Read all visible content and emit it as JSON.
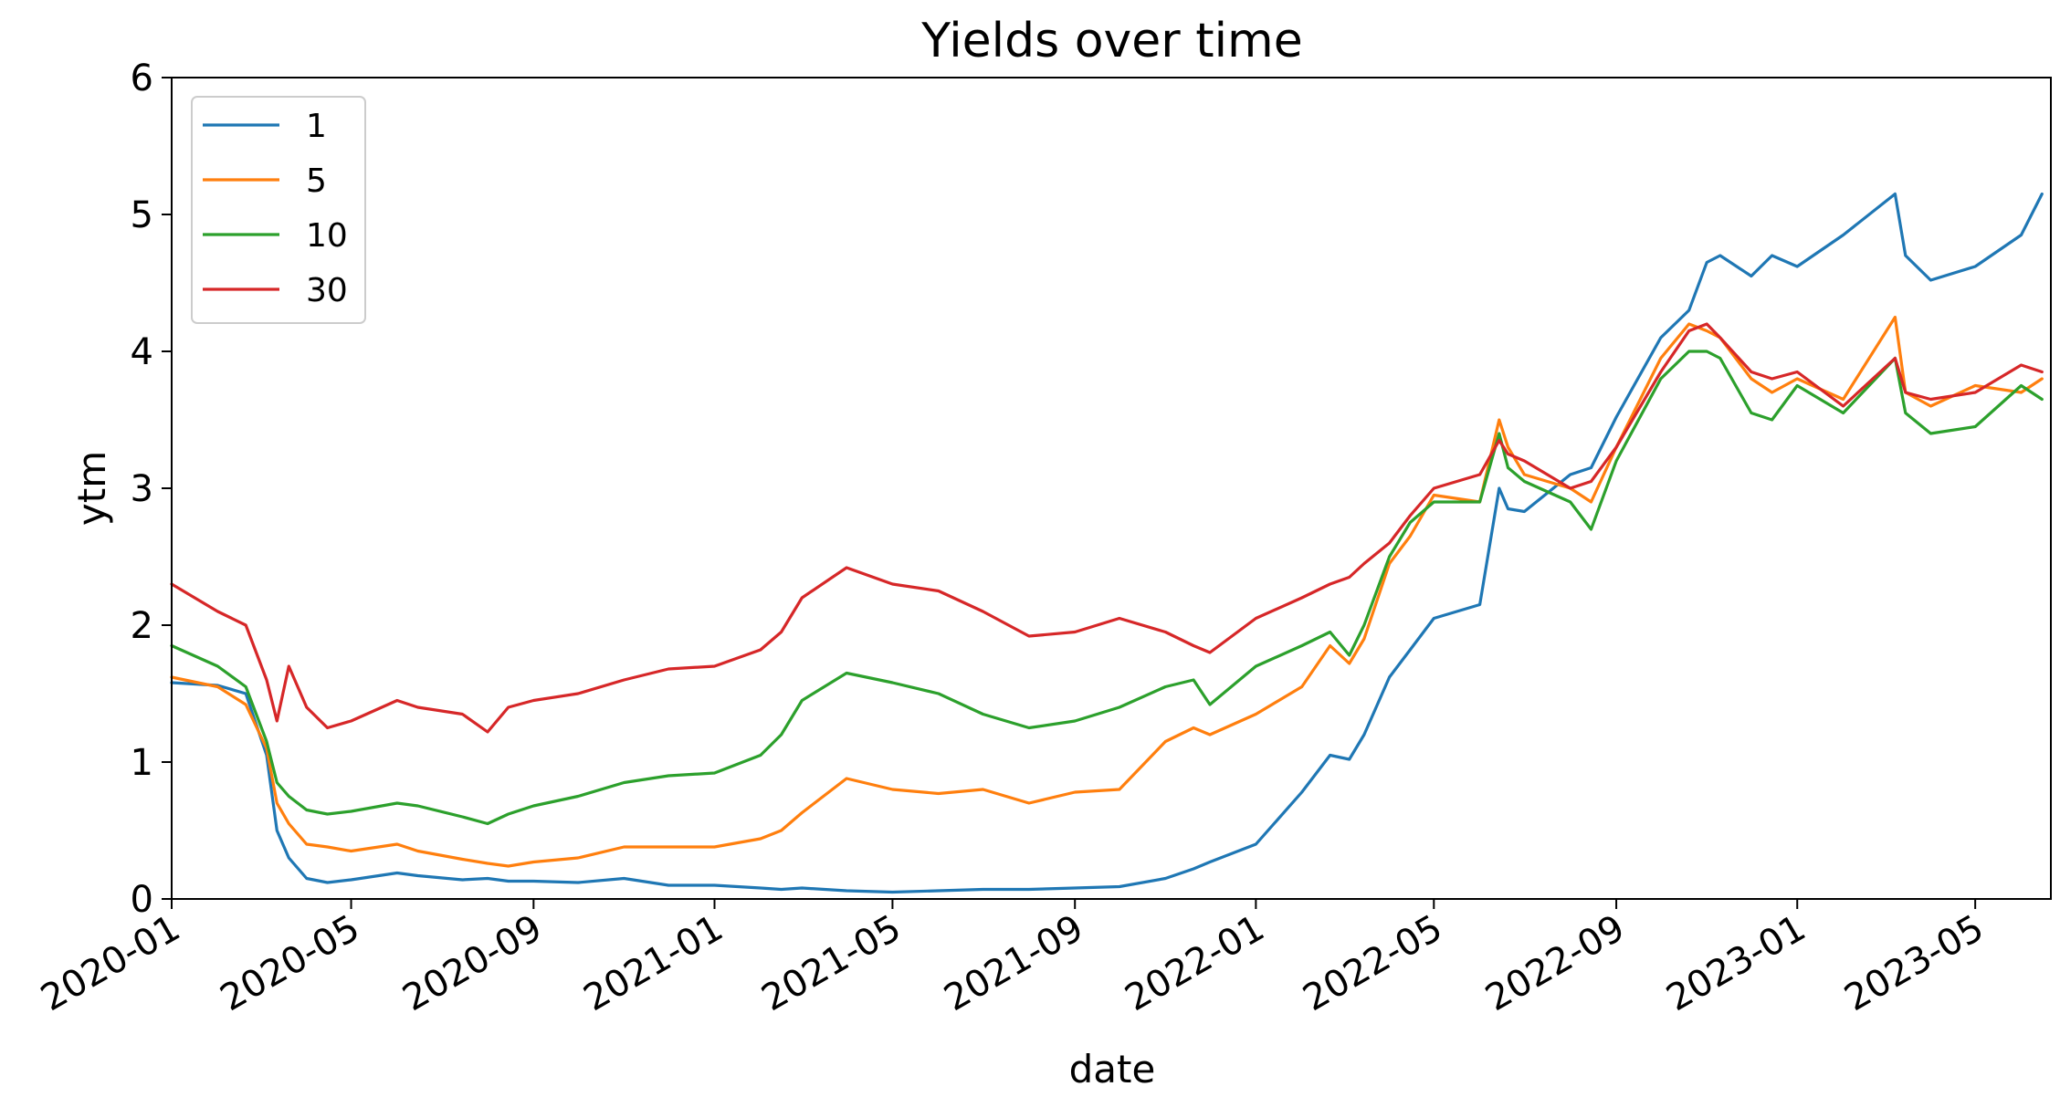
{
  "chart_data": {
    "type": "line",
    "title": "Yields over time",
    "xlabel": "date",
    "ylabel": "ytm",
    "xlim": [
      "2020-01-01",
      "2023-06-21"
    ],
    "ylim": [
      0,
      6
    ],
    "xticks": [
      "2020-01",
      "2020-05",
      "2020-09",
      "2021-01",
      "2021-05",
      "2021-09",
      "2022-01",
      "2022-05",
      "2022-09",
      "2023-01",
      "2023-05"
    ],
    "yticks": [
      "0",
      "1",
      "2",
      "3",
      "4",
      "5",
      "6"
    ],
    "grid": false,
    "legend": "upper-left",
    "x": [
      "2020-01-01",
      "2020-02-01",
      "2020-02-20",
      "2020-03-05",
      "2020-03-12",
      "2020-03-20",
      "2020-04-01",
      "2020-04-15",
      "2020-05-01",
      "2020-06-01",
      "2020-06-15",
      "2020-07-15",
      "2020-08-01",
      "2020-08-15",
      "2020-09-01",
      "2020-10-01",
      "2020-11-01",
      "2020-12-01",
      "2021-01-01",
      "2021-02-01",
      "2021-02-15",
      "2021-03-01",
      "2021-03-31",
      "2021-05-01",
      "2021-06-01",
      "2021-07-01",
      "2021-08-01",
      "2021-09-01",
      "2021-10-01",
      "2021-11-01",
      "2021-11-20",
      "2021-12-01",
      "2022-01-01",
      "2022-02-01",
      "2022-02-20",
      "2022-03-05",
      "2022-03-15",
      "2022-04-01",
      "2022-04-15",
      "2022-05-01",
      "2022-06-01",
      "2022-06-14",
      "2022-06-20",
      "2022-07-01",
      "2022-08-01",
      "2022-08-15",
      "2022-09-01",
      "2022-10-01",
      "2022-10-20",
      "2022-11-01",
      "2022-11-10",
      "2022-12-01",
      "2022-12-15",
      "2023-01-01",
      "2023-02-01",
      "2023-03-08",
      "2023-03-15",
      "2023-04-01",
      "2023-05-01",
      "2023-06-01",
      "2023-06-15"
    ],
    "series": [
      {
        "name": "1",
        "color": "#1f77b4",
        "values": [
          1.58,
          1.56,
          1.5,
          1.05,
          0.5,
          0.3,
          0.15,
          0.12,
          0.14,
          0.19,
          0.17,
          0.14,
          0.15,
          0.13,
          0.13,
          0.12,
          0.15,
          0.1,
          0.1,
          0.08,
          0.07,
          0.08,
          0.06,
          0.05,
          0.06,
          0.07,
          0.07,
          0.08,
          0.09,
          0.15,
          0.22,
          0.27,
          0.4,
          0.78,
          1.05,
          1.02,
          1.2,
          1.62,
          1.82,
          2.05,
          2.15,
          3.0,
          2.85,
          2.83,
          3.1,
          3.15,
          3.52,
          4.1,
          4.3,
          4.65,
          4.7,
          4.55,
          4.7,
          4.62,
          4.85,
          5.15,
          4.7,
          4.52,
          4.62,
          4.85,
          5.15
        ]
      },
      {
        "name": "5",
        "color": "#ff7f0e",
        "values": [
          1.62,
          1.55,
          1.42,
          1.1,
          0.7,
          0.55,
          0.4,
          0.38,
          0.35,
          0.4,
          0.35,
          0.29,
          0.26,
          0.24,
          0.27,
          0.3,
          0.38,
          0.38,
          0.38,
          0.44,
          0.5,
          0.63,
          0.88,
          0.8,
          0.77,
          0.8,
          0.7,
          0.78,
          0.8,
          1.15,
          1.25,
          1.2,
          1.35,
          1.55,
          1.85,
          1.72,
          1.9,
          2.45,
          2.65,
          2.95,
          2.9,
          3.5,
          3.3,
          3.1,
          3.0,
          2.9,
          3.3,
          3.95,
          4.2,
          4.15,
          4.1,
          3.8,
          3.7,
          3.8,
          3.65,
          4.25,
          3.7,
          3.6,
          3.75,
          3.7,
          3.8
        ]
      },
      {
        "name": "10",
        "color": "#2ca02c",
        "values": [
          1.85,
          1.7,
          1.55,
          1.15,
          0.85,
          0.75,
          0.65,
          0.62,
          0.64,
          0.7,
          0.68,
          0.6,
          0.55,
          0.62,
          0.68,
          0.75,
          0.85,
          0.9,
          0.92,
          1.05,
          1.2,
          1.45,
          1.65,
          1.58,
          1.5,
          1.35,
          1.25,
          1.3,
          1.4,
          1.55,
          1.6,
          1.42,
          1.7,
          1.85,
          1.95,
          1.78,
          2.0,
          2.5,
          2.75,
          2.9,
          2.9,
          3.4,
          3.15,
          3.05,
          2.9,
          2.7,
          3.2,
          3.8,
          4.0,
          4.0,
          3.95,
          3.55,
          3.5,
          3.75,
          3.55,
          3.95,
          3.55,
          3.4,
          3.45,
          3.75,
          3.65
        ]
      },
      {
        "name": "30",
        "color": "#d62728",
        "values": [
          2.3,
          2.1,
          2.0,
          1.6,
          1.3,
          1.7,
          1.4,
          1.25,
          1.3,
          1.45,
          1.4,
          1.35,
          1.22,
          1.4,
          1.45,
          1.5,
          1.6,
          1.68,
          1.7,
          1.82,
          1.95,
          2.2,
          2.42,
          2.3,
          2.25,
          2.1,
          1.92,
          1.95,
          2.05,
          1.95,
          1.85,
          1.8,
          2.05,
          2.2,
          2.3,
          2.35,
          2.45,
          2.6,
          2.8,
          3.0,
          3.1,
          3.35,
          3.25,
          3.2,
          3.0,
          3.05,
          3.3,
          3.85,
          4.15,
          4.2,
          4.1,
          3.85,
          3.8,
          3.85,
          3.6,
          3.95,
          3.7,
          3.65,
          3.7,
          3.9,
          3.85
        ]
      }
    ]
  }
}
